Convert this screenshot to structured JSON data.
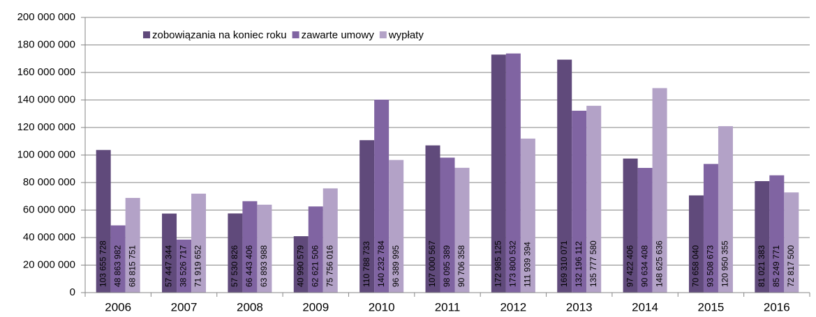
{
  "chart_data": {
    "type": "bar",
    "categories": [
      "2006",
      "2007",
      "2008",
      "2009",
      "2010",
      "2011",
      "2012",
      "2013",
      "2014",
      "2015",
      "2016"
    ],
    "series": [
      {
        "name": "zobowiązania na koniec roku",
        "color": "#604a7b",
        "values": [
          103655728,
          57447344,
          57530826,
          40990579,
          110788733,
          107000567,
          172985125,
          169310071,
          97422406,
          70658040,
          81021383
        ],
        "value_labels": [
          "103 655 728",
          "57 447 344",
          "57 530 826",
          "40 990 579",
          "110 788 733",
          "107 000 567",
          "172 985 125",
          "169 310 071",
          "97 422 406",
          "70 658 040",
          "81 021 383"
        ]
      },
      {
        "name": "zawarte umowy",
        "color": "#8064a2",
        "values": [
          48863982,
          38526717,
          66443406,
          62621506,
          140232784,
          98095389,
          173800532,
          132196112,
          90634408,
          93508673,
          85249771
        ],
        "value_labels": [
          "48 863 982",
          "38 526 717",
          "66 443 406",
          "62 621 506",
          "140 232 784",
          "98 095 389",
          "173 800 532",
          "132 196 112",
          "90 634 408",
          "93 508 673",
          "85 249 771"
        ]
      },
      {
        "name": "wypłaty",
        "color": "#b3a2c7",
        "values": [
          68815751,
          71919652,
          63893988,
          75756016,
          96389995,
          90706358,
          111939394,
          135777580,
          148625636,
          120950355,
          72817500
        ],
        "value_labels": [
          "68 815 751",
          "71 919 652",
          "63 893 988",
          "75 756 016",
          "96 389 995",
          "90 706 358",
          "111 939 394",
          "135 777 580",
          "148 625 636",
          "120 950 355",
          "72 817 500"
        ]
      }
    ],
    "ylim": [
      0,
      200000000
    ],
    "yticks": [
      0,
      {
        "value": 20000000,
        "label": "20 000 000"
      },
      {
        "value": 40000000,
        "label": "40 000 000"
      },
      {
        "value": 60000000,
        "label": "60 000 000"
      },
      {
        "value": 80000000,
        "label": "80 000 000"
      },
      {
        "value": 100000000,
        "label": "100 000 000"
      },
      {
        "value": 120000000,
        "label": "120 000 000"
      },
      {
        "value": 140000000,
        "label": "140 000 000"
      },
      {
        "value": 160000000,
        "label": "160 000 000"
      },
      {
        "value": 180000000,
        "label": "180 000 000"
      },
      {
        "value": 200000000,
        "label": "200 000 000"
      }
    ],
    "grid": true,
    "legend": "top-left"
  }
}
